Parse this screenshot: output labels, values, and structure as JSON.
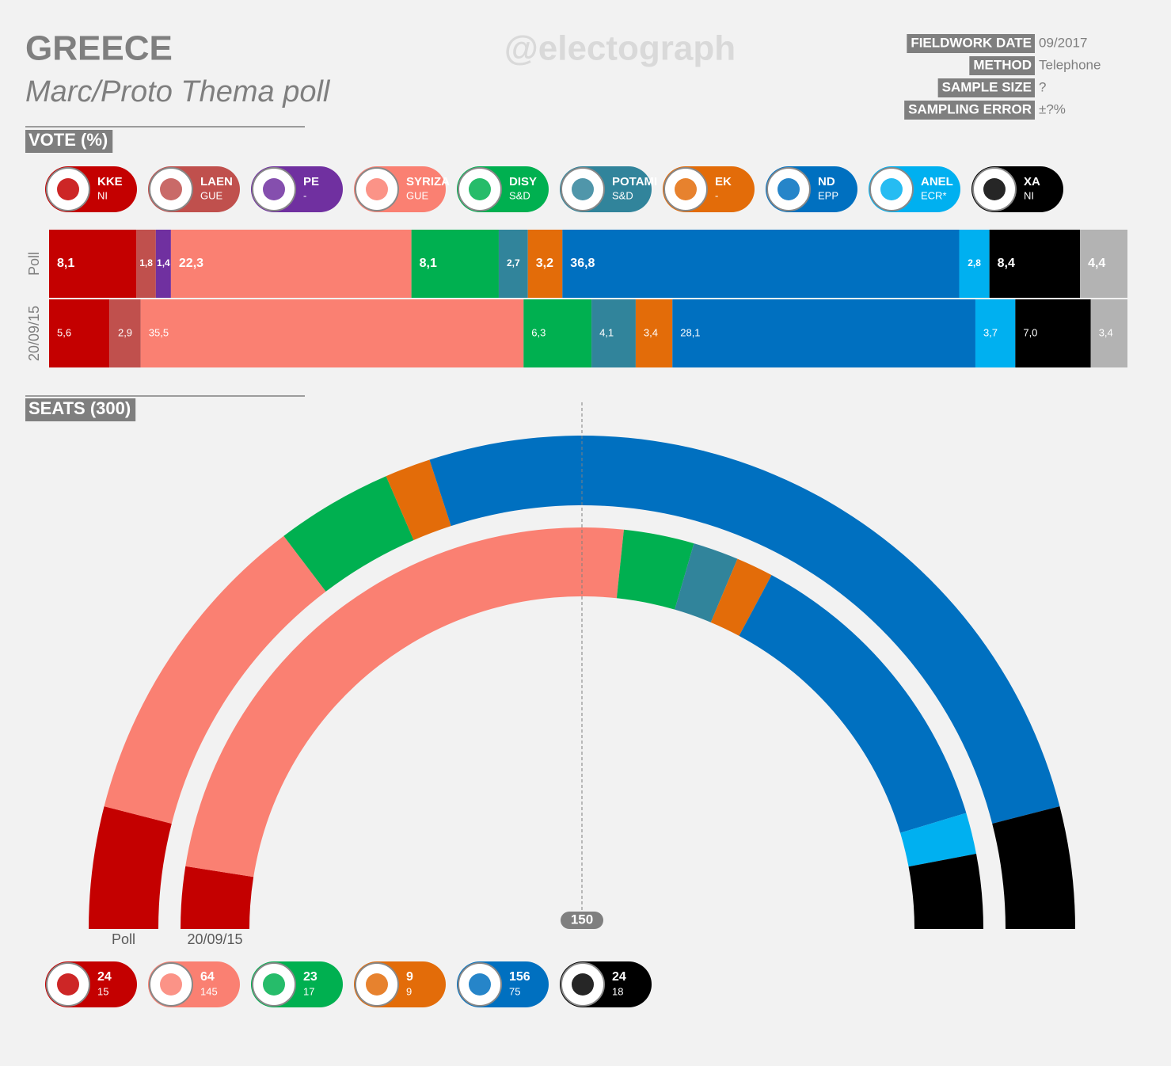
{
  "header": {
    "title": "GREECE",
    "subtitle": "Marc/Proto Thema poll",
    "watermark": "@electograph"
  },
  "meta": [
    {
      "label": "FIELDWORK DATE",
      "value": "09/2017"
    },
    {
      "label": "METHOD",
      "value": "Telephone"
    },
    {
      "label": "SAMPLE SIZE",
      "value": "?"
    },
    {
      "label": "SAMPLING ERROR",
      "value": "±?%"
    }
  ],
  "chart_data": [
    {
      "type": "stacked-bar",
      "title": "VOTE (%)",
      "categories": [
        "Poll",
        "20/09/15"
      ],
      "xlim": [
        0,
        100
      ],
      "series": [
        {
          "name": "KKE",
          "group": "NI",
          "color": "#c40000",
          "values": [
            8.1,
            5.6
          ],
          "value_labels": [
            "8,1",
            "5,6"
          ]
        },
        {
          "name": "LAEN",
          "group": "GUE",
          "color": "#c0504d",
          "values": [
            1.8,
            2.9
          ],
          "value_labels": [
            "1,8",
            "2,9"
          ]
        },
        {
          "name": "PE",
          "group": "-",
          "color": "#7030a0",
          "values": [
            1.4,
            null
          ],
          "value_labels": [
            "1,4",
            null
          ]
        },
        {
          "name": "SYRIZA",
          "group": "GUE",
          "color": "#fa8072",
          "values": [
            22.3,
            35.5
          ],
          "value_labels": [
            "22,3",
            "35,5"
          ]
        },
        {
          "name": "DISY",
          "group": "S&D",
          "color": "#00b050",
          "values": [
            8.1,
            6.3
          ],
          "value_labels": [
            "8,1",
            "6,3"
          ]
        },
        {
          "name": "POTAMI",
          "group": "S&D",
          "color": "#31849b",
          "values": [
            2.7,
            4.1
          ],
          "value_labels": [
            "2,7",
            "4,1"
          ]
        },
        {
          "name": "EK",
          "group": "-",
          "color": "#e36c09",
          "values": [
            3.2,
            3.4
          ],
          "value_labels": [
            "3,2",
            "3,4"
          ]
        },
        {
          "name": "ND",
          "group": "EPP",
          "color": "#0070c0",
          "values": [
            36.8,
            28.1
          ],
          "value_labels": [
            "36,8",
            "28,1"
          ]
        },
        {
          "name": "ANEL",
          "group": "ECR*",
          "color": "#00b0f0",
          "values": [
            2.8,
            3.7
          ],
          "value_labels": [
            "2,8",
            "3,7"
          ]
        },
        {
          "name": "XA",
          "group": "NI",
          "color": "#000000",
          "values": [
            8.4,
            7.0
          ],
          "value_labels": [
            "8,4",
            "7,0"
          ]
        },
        {
          "color": "#b3b3b3",
          "values": [
            4.4,
            3.4
          ],
          "value_labels": [
            "4,4",
            "3,4"
          ]
        }
      ]
    },
    {
      "type": "hemicycle",
      "title": "SEATS (300)",
      "categories": [
        "Poll",
        "20/09/15"
      ],
      "total": 300,
      "majority": 150,
      "series": [
        {
          "name": "KKE",
          "color": "#c40000",
          "values": [
            24,
            15
          ]
        },
        {
          "name": "SYRIZA",
          "color": "#fa8072",
          "values": [
            64,
            145
          ]
        },
        {
          "name": "DISY",
          "color": "#00b050",
          "values": [
            23,
            17
          ]
        },
        {
          "name": "POTAMI",
          "color": "#31849b",
          "values": [
            null,
            11
          ],
          "legend": false
        },
        {
          "name": "EK",
          "color": "#e36c09",
          "values": [
            9,
            9
          ]
        },
        {
          "name": "ND",
          "color": "#0070c0",
          "values": [
            156,
            75
          ]
        },
        {
          "name": "ANEL",
          "color": "#00b0f0",
          "values": [
            null,
            10
          ],
          "legend": false
        },
        {
          "name": "XA",
          "color": "#000000",
          "values": [
            24,
            18
          ]
        }
      ]
    }
  ]
}
